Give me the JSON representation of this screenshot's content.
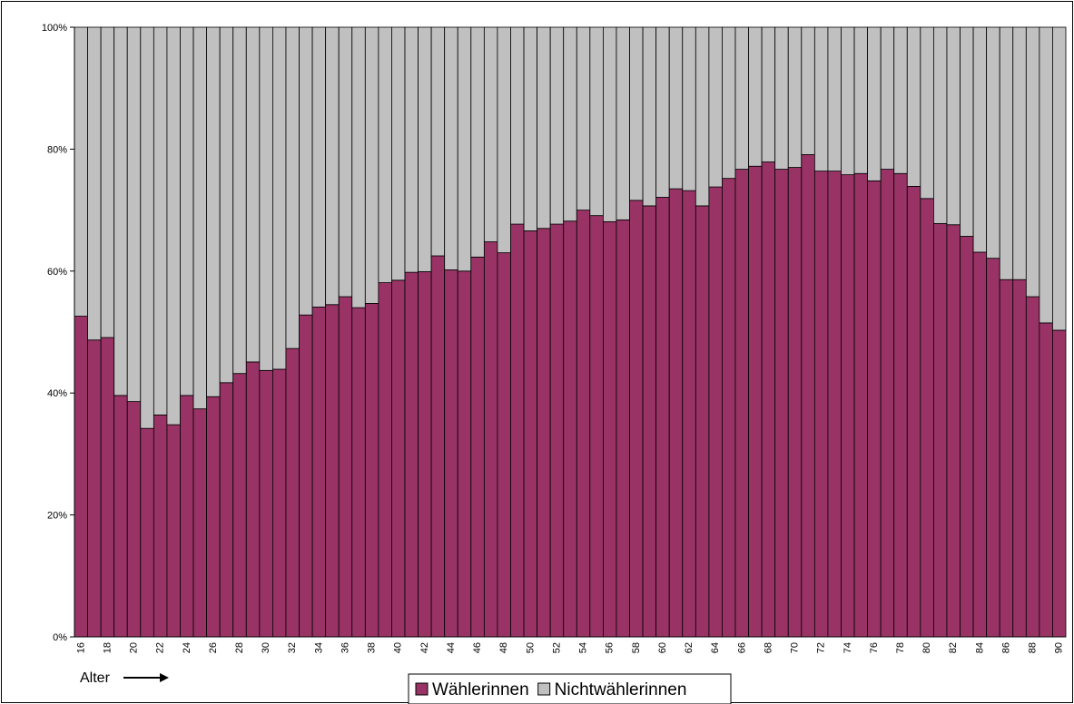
{
  "chart_data": {
    "type": "bar",
    "stacked": true,
    "percent_stacked": true,
    "x_label_text": "Alter",
    "x_tick_label_step": 2,
    "ylim": [
      0,
      100
    ],
    "y_ticks": [
      0,
      20,
      40,
      60,
      80,
      100
    ],
    "y_tick_suffix": "%",
    "grid": false,
    "legend": "bottom-center",
    "categories": [
      16,
      17,
      18,
      19,
      20,
      21,
      22,
      23,
      24,
      25,
      26,
      27,
      28,
      29,
      30,
      31,
      32,
      33,
      34,
      35,
      36,
      37,
      38,
      39,
      40,
      41,
      42,
      43,
      44,
      45,
      46,
      47,
      48,
      49,
      50,
      51,
      52,
      53,
      54,
      55,
      56,
      57,
      58,
      59,
      60,
      61,
      62,
      63,
      64,
      65,
      66,
      67,
      68,
      69,
      70,
      71,
      72,
      73,
      74,
      75,
      76,
      77,
      78,
      79,
      80,
      81,
      82,
      83,
      84,
      85,
      86,
      87,
      88,
      89,
      90
    ],
    "series": [
      {
        "name": "Wählerinnen",
        "color": "#993366",
        "values": [
          52.6,
          48.7,
          49.1,
          39.6,
          38.6,
          34.2,
          36.4,
          34.8,
          39.6,
          37.4,
          39.4,
          41.7,
          43.2,
          45.1,
          43.7,
          43.9,
          47.3,
          52.8,
          54.1,
          54.5,
          55.8,
          54.0,
          54.7,
          58.1,
          58.5,
          59.8,
          59.9,
          62.5,
          60.2,
          60.0,
          62.3,
          64.8,
          63.0,
          67.7,
          66.6,
          67.0,
          67.7,
          68.2,
          70.0,
          69.1,
          68.1,
          68.4,
          71.6,
          70.7,
          72.1,
          73.5,
          73.2,
          70.7,
          73.8,
          75.2,
          76.7,
          77.2,
          77.9,
          76.7,
          77.0,
          79.1,
          76.4,
          76.4,
          75.8,
          76.0,
          74.8,
          76.7,
          76.0,
          73.9,
          71.9,
          67.8,
          67.6,
          65.7,
          63.1,
          62.1,
          58.6,
          58.6,
          55.8,
          51.5,
          50.3
        ]
      },
      {
        "name": "Nichtwählerinnen",
        "color": "#c0c0c0",
        "values": [
          47.4,
          51.3,
          50.9,
          60.4,
          61.4,
          65.8,
          63.6,
          65.2,
          60.4,
          62.6,
          60.6,
          58.3,
          56.8,
          54.9,
          56.3,
          56.1,
          52.7,
          47.2,
          45.9,
          45.5,
          44.2,
          46.0,
          45.3,
          41.9,
          41.5,
          40.2,
          40.1,
          37.5,
          39.8,
          40.0,
          37.7,
          35.2,
          37.0,
          32.3,
          33.4,
          33.0,
          32.3,
          31.8,
          30.0,
          30.9,
          31.9,
          31.6,
          28.4,
          29.3,
          27.9,
          26.5,
          26.8,
          29.3,
          26.2,
          24.8,
          23.3,
          22.8,
          22.1,
          23.3,
          23.0,
          20.9,
          23.6,
          23.6,
          24.2,
          24.0,
          25.2,
          23.3,
          24.0,
          26.1,
          28.1,
          32.2,
          32.4,
          34.3,
          36.9,
          37.9,
          41.4,
          41.4,
          44.2,
          48.5,
          49.7
        ]
      }
    ]
  }
}
